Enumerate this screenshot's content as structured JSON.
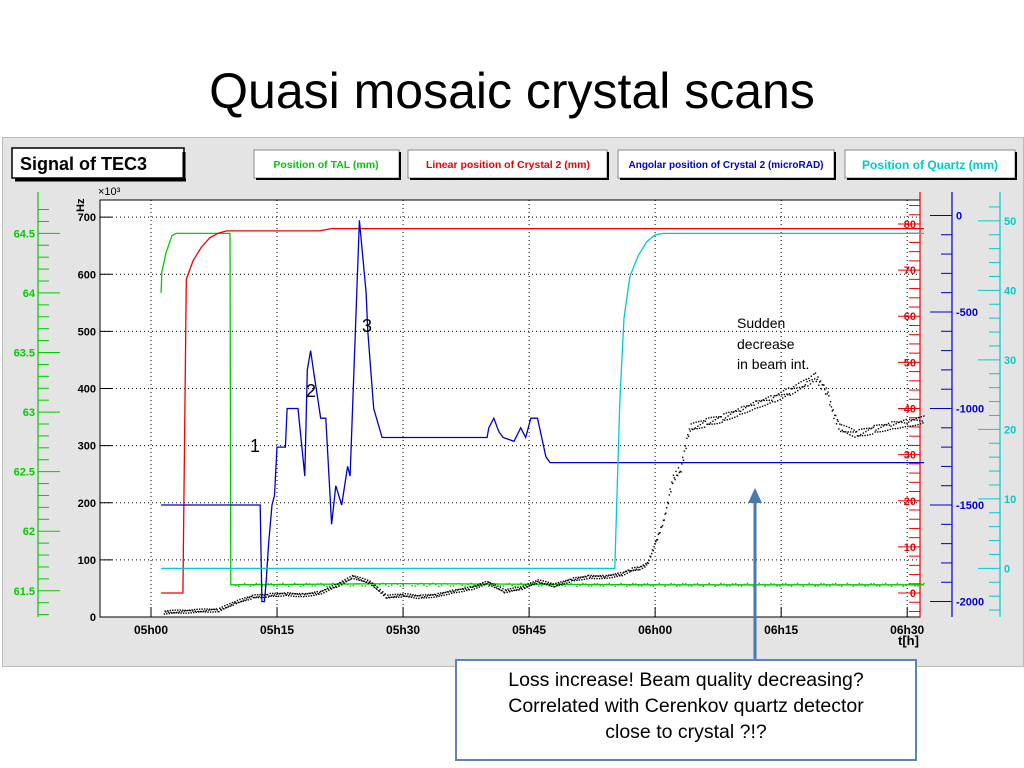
{
  "slide": {
    "title": "Quasi mosaic crystal scans"
  },
  "chart_data": {
    "type": "line",
    "title": "Signal of TEC3",
    "xlabel": "t[h]",
    "left_axis_unit": "Hz",
    "left_axis_exponent": "×10³",
    "xticks": [
      "05h00",
      "05h15",
      "05h30",
      "05h45",
      "06h00",
      "06h15",
      "06h30"
    ],
    "xlim_minutes": [
      0,
      92
    ],
    "grid": true,
    "axes": {
      "signal": {
        "label": "",
        "color": "#000000",
        "range": [
          0,
          730
        ],
        "ticks": [
          0,
          100,
          200,
          300,
          400,
          500,
          600,
          700
        ]
      },
      "tal": {
        "label": "Position of TAL (mm)",
        "color": "#00cc00",
        "range": [
          61.28,
          64.78
        ],
        "ticks": [
          61.5,
          62,
          62.5,
          63,
          63.5,
          64,
          64.5
        ]
      },
      "crystal_linear": {
        "label": "Linear position of Crystal 2 (mm)",
        "color": "#ee0000",
        "range": [
          -5.2,
          85.2
        ],
        "ticks": [
          0,
          10,
          20,
          30,
          40,
          50,
          60,
          70,
          80
        ]
      },
      "crystal_angular": {
        "label": "Angolar position of Crystal 2 (microRAD)",
        "color": "#0000cc",
        "range": [
          -2080,
          80
        ],
        "ticks": [
          0,
          -500,
          -1000,
          -1500,
          -2000
        ]
      },
      "quartz": {
        "label": "Position of Quartz (mm)",
        "color": "#00cccc",
        "range": [
          -7,
          53
        ],
        "ticks": [
          0,
          10,
          20,
          30,
          40,
          50
        ]
      }
    },
    "series": [
      {
        "name": "Position of TAL (mm)",
        "axis": "tal",
        "x": [
          1.2,
          1.3,
          1.8,
          2.5,
          3.0,
          3.5,
          4.5,
          5.2,
          8.0,
          9.0,
          9.4,
          9.5,
          10,
          30,
          60,
          92
        ],
        "y": [
          64.0,
          64.18,
          64.34,
          64.48,
          64.5,
          64.5,
          64.5,
          64.5,
          64.5,
          64.5,
          64.5,
          61.55,
          61.55,
          61.56,
          61.55,
          61.55
        ]
      },
      {
        "name": "Linear position of Crystal 2 (mm)",
        "axis": "crystal_linear",
        "x": [
          1.2,
          3.8,
          4.2,
          5.0,
          6.0,
          7.0,
          8.0,
          9.0,
          10,
          20,
          21.5,
          45,
          55,
          60,
          62,
          92
        ],
        "y": [
          0,
          0,
          68,
          72,
          75,
          77,
          78,
          78.5,
          78.5,
          78.5,
          79,
          79,
          79,
          79,
          79,
          79
        ]
      },
      {
        "name": "Angolar position of Crystal 2 (microRAD)",
        "axis": "crystal_angular",
        "x": [
          1.2,
          9.5,
          9.8,
          13.0,
          13.2,
          13.5,
          13.7,
          14.0,
          14.4,
          14.7,
          15.0,
          16.0,
          16.2,
          17.0,
          17.5,
          18.3,
          18.6,
          19.0,
          19.5,
          20.2,
          20.8,
          21.5,
          22.0,
          22.7,
          23.4,
          23.7,
          24.8,
          25.6,
          25.8,
          26.5,
          27.5,
          28,
          28.6,
          40,
          40.2,
          40.8,
          41.4,
          41.9,
          43.2,
          44,
          44.6,
          45.2,
          46,
          46.5,
          47,
          47.5,
          48,
          48.5,
          92
        ],
        "y": [
          -1500,
          -1500,
          -1500,
          -1500,
          -2000,
          -2000,
          -1900,
          -1700,
          -1500,
          -1450,
          -1200,
          -1200,
          -1000,
          -1000,
          -1000,
          -1350,
          -800,
          -700,
          -850,
          -1050,
          -1050,
          -1600,
          -1400,
          -1500,
          -1300,
          -1350,
          -25,
          -400,
          -600,
          -1000,
          -1150,
          -1150,
          -1150,
          -1150,
          -1100,
          -1050,
          -1120,
          -1150,
          -1170,
          -1100,
          -1150,
          -1050,
          -1050,
          -1150,
          -1250,
          -1280,
          -1280,
          -1280,
          -1280
        ]
      },
      {
        "name": "Position of Quartz (mm)",
        "axis": "quartz",
        "x": [
          1.2,
          55.2,
          55.8,
          56.3,
          57,
          58,
          59,
          60,
          61,
          62,
          92
        ],
        "y": [
          0,
          0,
          24,
          36,
          42,
          45,
          47,
          48,
          48.2,
          48.2,
          48.2
        ]
      },
      {
        "name": "Signal of TEC3",
        "axis": "signal",
        "x": [
          1.5,
          8,
          10,
          12,
          14,
          16,
          18,
          20,
          22,
          24,
          26,
          28,
          30,
          32,
          34,
          36,
          38,
          40,
          42,
          44,
          46,
          48,
          50,
          52,
          54,
          56,
          57,
          58,
          59,
          60,
          61,
          62,
          63,
          64,
          66,
          68,
          70,
          72,
          74,
          76,
          78,
          79,
          80,
          80.5,
          81,
          82,
          84,
          86,
          88,
          90,
          92
        ],
        "y": [
          8,
          12,
          25,
          35,
          38,
          40,
          38,
          42,
          55,
          70,
          60,
          35,
          38,
          35,
          38,
          45,
          50,
          60,
          45,
          50,
          62,
          55,
          65,
          70,
          70,
          75,
          82,
          85,
          92,
          130,
          170,
          240,
          260,
          330,
          340,
          348,
          360,
          372,
          382,
          395,
          410,
          420,
          400,
          390,
          360,
          330,
          320,
          328,
          335,
          340,
          345
        ]
      }
    ],
    "annotations": [
      "1",
      "2",
      "3",
      "Sudden",
      "decrease",
      "in beam int."
    ],
    "callout": [
      "Loss increase! Beam quality  decreasing?",
      "Correlated with Cerenkov quartz detector",
      "close to crystal ?!?"
    ]
  }
}
